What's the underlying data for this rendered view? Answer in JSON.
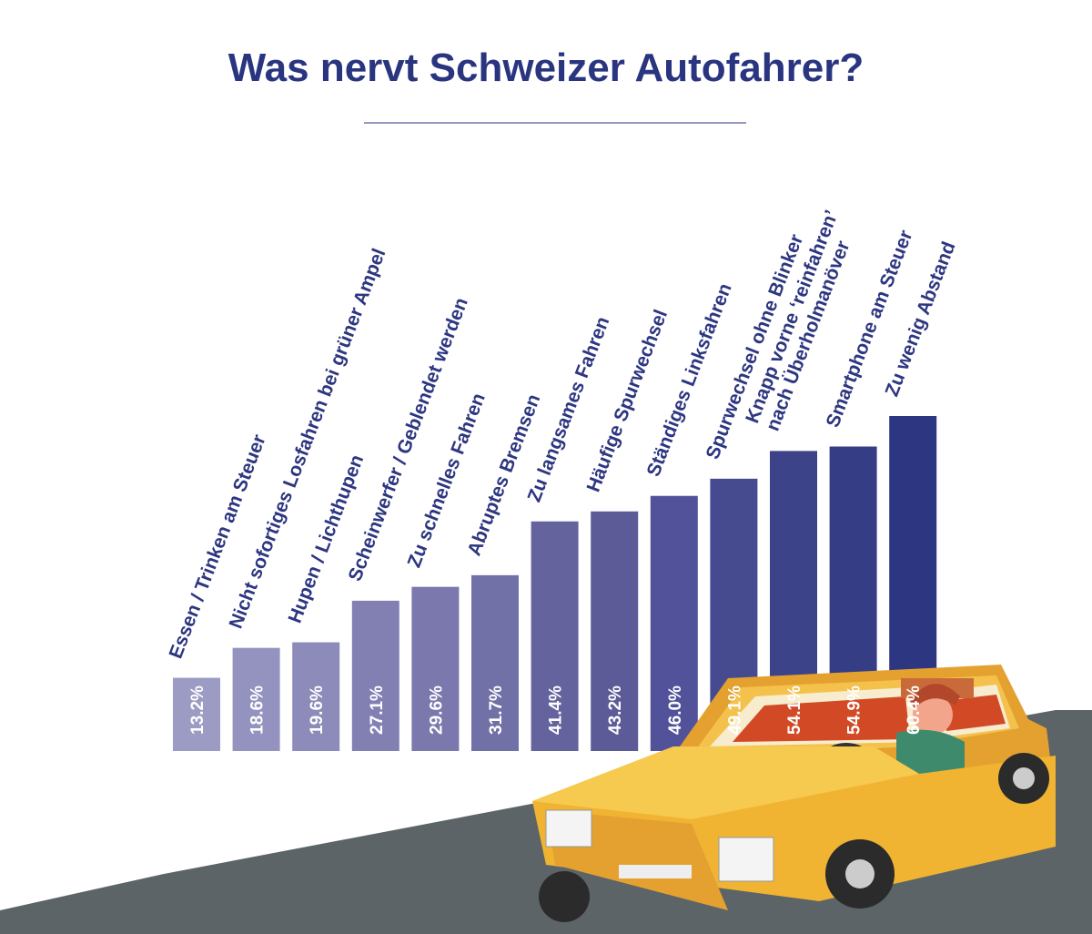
{
  "chart_data": {
    "type": "bar",
    "title": "Was nervt Schweizer Autofahrer?",
    "categories": [
      "Essen / Trinken am Steuer",
      "Nicht sofortiges Losfahren bei grüner Ampel",
      "Hupen / Lichthupen",
      "Scheinwerfer / Geblendet werden",
      "Zu schnelles Fahren",
      "Abruptes Bremsen",
      "Zu langsames Fahren",
      "Häufige Spurwechsel",
      "Ständiges Linksfahren",
      "Spurwechsel ohne Blinker",
      "Knapp vorne ‘reinfahren’\nnach Überholmanöver",
      "Smartphone am Steuer",
      "Zu wenig Abstand"
    ],
    "values": [
      13.2,
      18.6,
      19.6,
      27.1,
      29.6,
      31.7,
      41.4,
      43.2,
      46.0,
      49.1,
      54.1,
      54.9,
      60.4
    ],
    "value_labels": [
      "13.2%",
      "18.6%",
      "19.6%",
      "27.1%",
      "29.6%",
      "31.7%",
      "41.4%",
      "43.2%",
      "46.0%",
      "49.1%",
      "54.1%",
      "54.9%",
      "60.4%"
    ],
    "colors": [
      "#9c9bc3",
      "#9493bf",
      "#8c8bba",
      "#8280b3",
      "#7a78ad",
      "#7170a7",
      "#65639e",
      "#5c5b98",
      "#52529a",
      "#464b90",
      "#3c4388",
      "#353d84",
      "#2d3680"
    ]
  }
}
